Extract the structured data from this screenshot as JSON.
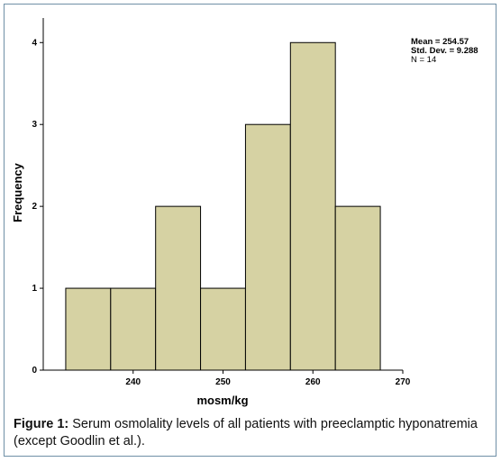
{
  "chart_data": {
    "type": "bar",
    "histogram": true,
    "bins": [
      {
        "from": 232.5,
        "to": 237.5,
        "count": 1
      },
      {
        "from": 237.5,
        "to": 242.5,
        "count": 1
      },
      {
        "from": 242.5,
        "to": 247.5,
        "count": 2
      },
      {
        "from": 247.5,
        "to": 252.5,
        "count": 1
      },
      {
        "from": 252.5,
        "to": 257.5,
        "count": 3
      },
      {
        "from": 257.5,
        "to": 262.5,
        "count": 4
      },
      {
        "from": 262.5,
        "to": 267.5,
        "count": 2
      }
    ],
    "xlabel": "mosm/kg",
    "ylabel": "Frequency",
    "xlim": [
      230,
      270
    ],
    "ylim": [
      0,
      4.3
    ],
    "xticks": [
      240,
      250,
      260,
      270
    ],
    "yticks": [
      0,
      1,
      2,
      3,
      4
    ],
    "bar_color": "#d6d2a3",
    "grid": false,
    "stats": {
      "mean": "Mean = 254.57",
      "std": "Std. Dev. = 9.288",
      "n": "N = 14"
    }
  },
  "caption": {
    "label": "Figure 1:",
    "text": " Serum osmolality levels of all patients with preeclamptic hyponatremia (except Goodlin et al.)."
  }
}
